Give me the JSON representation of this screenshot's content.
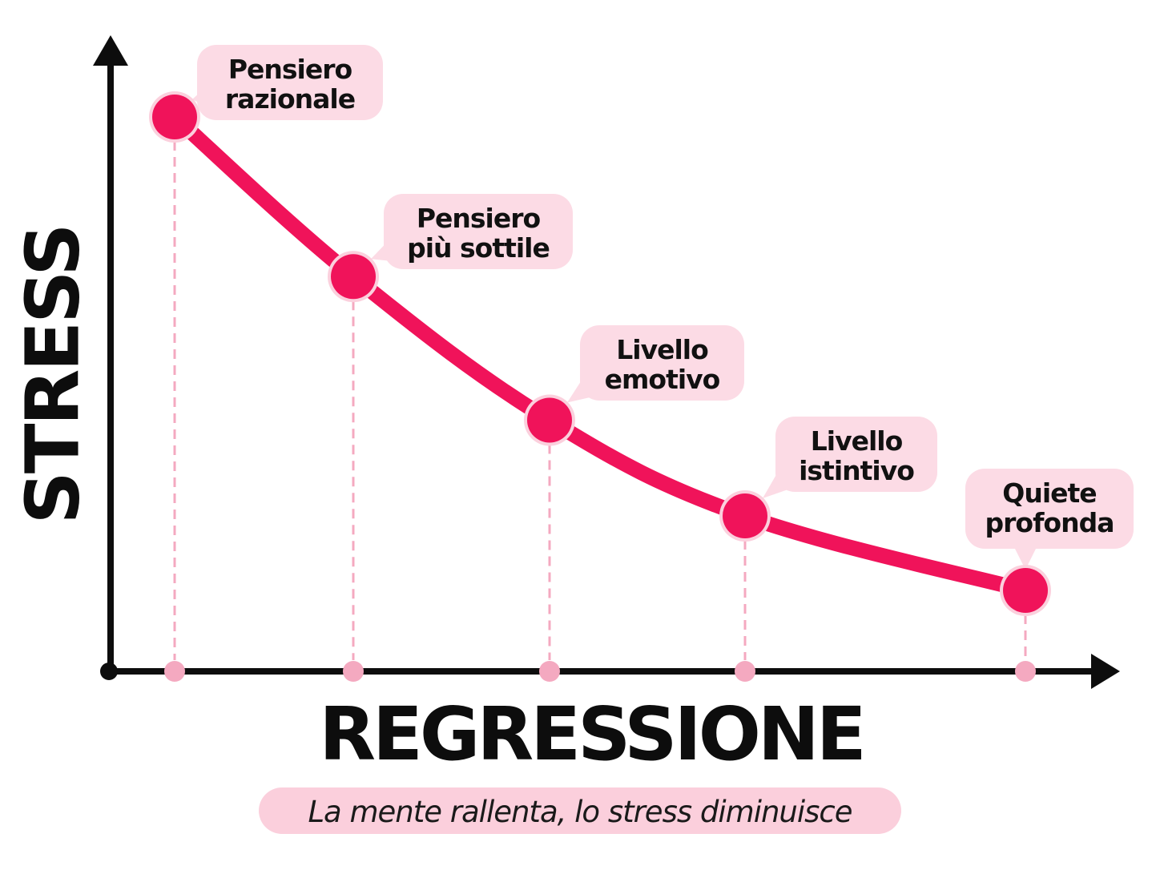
{
  "chart_data": {
    "type": "line",
    "xlabel": "REGRESSIONE",
    "ylabel": "STRESS",
    "caption": "La mente rallenta, lo stress diminuisce",
    "categories": [
      "Pensiero razionale",
      "Pensiero più sottile",
      "Livello emotivo",
      "Livello istintivo",
      "Quiete profonda"
    ],
    "points": [
      {
        "x": 1,
        "y": 100,
        "label_lines": [
          "Pensiero",
          "razionale"
        ]
      },
      {
        "x": 2,
        "y": 70,
        "label_lines": [
          "Pensiero",
          "più sottile"
        ]
      },
      {
        "x": 3,
        "y": 43,
        "label_lines": [
          "Livello",
          "emotivo"
        ]
      },
      {
        "x": 4,
        "y": 25,
        "label_lines": [
          "Livello",
          "istintivo"
        ]
      },
      {
        "x": 5,
        "y": 11,
        "label_lines": [
          "Quiete",
          "profonda"
        ]
      }
    ],
    "x_ticks_labeled": false,
    "y_ticks_labeled": false,
    "grid": false,
    "colors": {
      "line": "#f0135a",
      "point": "#f0135a",
      "point_ring": "#fbd0dd",
      "dashed_guide": "#f4a9c0",
      "bubble": "#fcdbe5",
      "caption_bg": "#fbcfdc",
      "axis": "#0d0d0d"
    }
  }
}
